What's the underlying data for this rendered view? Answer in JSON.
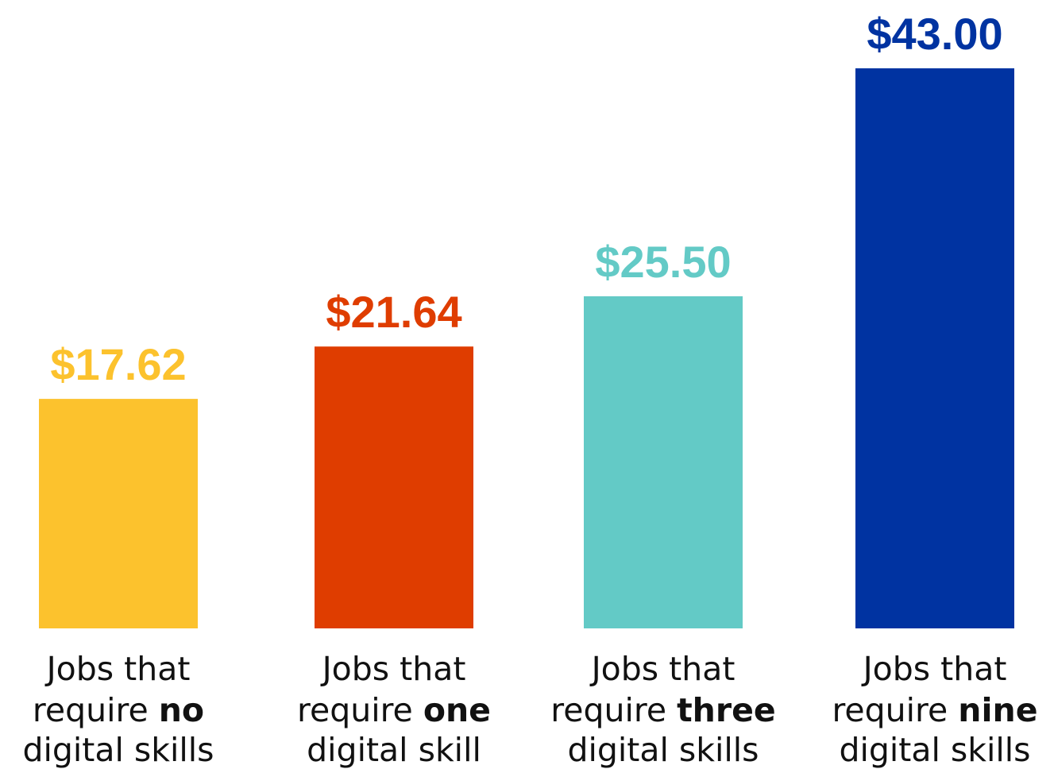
{
  "chart_data": {
    "type": "bar",
    "categories": [
      "Jobs that require no digital skills",
      "Jobs that require one digital skill",
      "Jobs that require three digital skills",
      "Jobs that require nine digital skills"
    ],
    "values": [
      17.62,
      21.64,
      25.5,
      43.0
    ],
    "value_labels": [
      "$17.62",
      "$21.64",
      "$25.50",
      "$43.00"
    ],
    "category_lines": [
      [
        "Jobs that",
        "require ",
        "no",
        "digital skills"
      ],
      [
        "Jobs that",
        "require ",
        "one",
        "digital skill"
      ],
      [
        "Jobs that",
        "require ",
        "three",
        "digital skills"
      ],
      [
        "Jobs that",
        "require ",
        "nine",
        "digital skills"
      ]
    ],
    "colors": [
      "#fcc22d",
      "#df3d00",
      "#63cac6",
      "#0033a1"
    ],
    "ylim": [
      0,
      43
    ]
  }
}
